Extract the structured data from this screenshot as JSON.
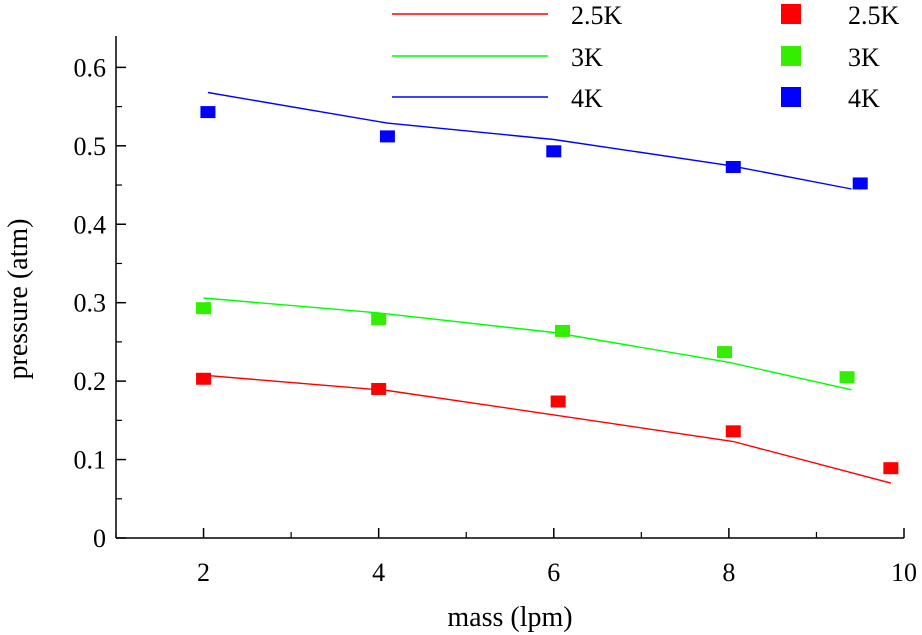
{
  "chart_data": {
    "type": "line",
    "xlabel": "mass (lpm)",
    "ylabel": "pressure (atm)",
    "xlim": [
      1,
      10
    ],
    "ylim": [
      0,
      0.64
    ],
    "xticks": [
      2,
      4,
      6,
      8,
      10
    ],
    "xtick_labels": [
      "2",
      "4",
      "6",
      "8",
      "10"
    ],
    "yticks": [
      0,
      0.1,
      0.2,
      0.3,
      0.4,
      0.5,
      0.6
    ],
    "ytick_labels": [
      "0",
      "0.1",
      "0.2",
      "0.3",
      "0.4",
      "0.5",
      "0.6"
    ],
    "grid": false,
    "legend_position": "top-right",
    "line_series": [
      {
        "name": "2.5K",
        "color": "#ff0000",
        "points": [
          [
            2.05,
            0.207
          ],
          [
            4.1,
            0.188
          ],
          [
            6.0,
            0.157
          ],
          [
            8.05,
            0.123
          ],
          [
            9.85,
            0.07
          ]
        ]
      },
      {
        "name": "3K",
        "color": "#00ff00",
        "points": [
          [
            2.0,
            0.306
          ],
          [
            4.0,
            0.287
          ],
          [
            6.0,
            0.262
          ],
          [
            8.0,
            0.224
          ],
          [
            9.4,
            0.189
          ]
        ]
      },
      {
        "name": "4K",
        "color": "#0000ff",
        "points": [
          [
            2.05,
            0.568
          ],
          [
            4.1,
            0.529
          ],
          [
            6.0,
            0.508
          ],
          [
            8.0,
            0.475
          ],
          [
            9.4,
            0.445
          ]
        ]
      }
    ],
    "marker_series": [
      {
        "name": "2.5K",
        "color": "#ff0000",
        "points": [
          [
            2.0,
            0.203
          ],
          [
            4.0,
            0.19
          ],
          [
            6.05,
            0.174
          ],
          [
            8.05,
            0.136
          ],
          [
            9.85,
            0.089
          ]
        ]
      },
      {
        "name": "3K",
        "color": "#33ee00",
        "points": [
          [
            2.0,
            0.293
          ],
          [
            4.0,
            0.279
          ],
          [
            6.1,
            0.264
          ],
          [
            7.95,
            0.237
          ],
          [
            9.35,
            0.205
          ]
        ]
      },
      {
        "name": "4K",
        "color": "#0000ff",
        "points": [
          [
            2.05,
            0.543
          ],
          [
            4.1,
            0.512
          ],
          [
            6.0,
            0.493
          ],
          [
            8.05,
            0.473
          ],
          [
            9.5,
            0.452
          ]
        ]
      }
    ]
  }
}
